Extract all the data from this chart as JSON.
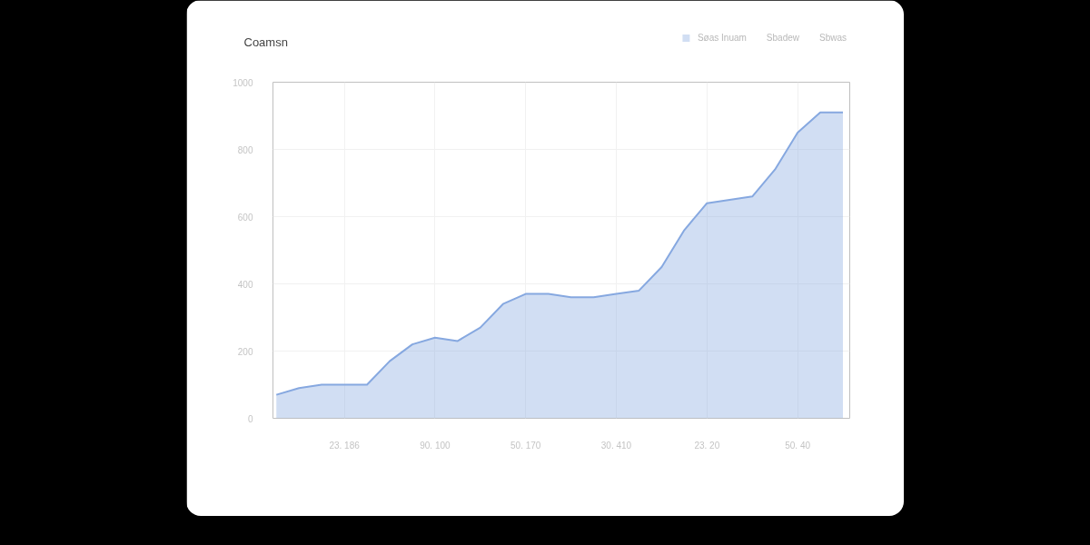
{
  "chart_data": {
    "type": "area",
    "title": "Coamsn",
    "categories": [
      null,
      null,
      null,
      "23. 186",
      null,
      null,
      null,
      "90. 100",
      null,
      null,
      null,
      "50. 170",
      null,
      null,
      null,
      "30. 410",
      null,
      null,
      null,
      "23. 20",
      null,
      null,
      null,
      "50. 40",
      null,
      null
    ],
    "series": [
      {
        "name": "Søas Inuam",
        "color": "#86a8e0",
        "values": [
          70,
          90,
          100,
          100,
          100,
          170,
          220,
          240,
          230,
          270,
          340,
          370,
          370,
          360,
          360,
          370,
          380,
          450,
          560,
          640,
          650,
          660,
          740,
          850,
          910,
          910
        ]
      }
    ],
    "ylim": [
      0,
      1000
    ],
    "yticks": [
      0,
      200,
      400,
      600,
      800,
      1000
    ],
    "annotations": [
      "Sbadew",
      "Sbwas"
    ],
    "grid": true,
    "legend": "top right"
  }
}
